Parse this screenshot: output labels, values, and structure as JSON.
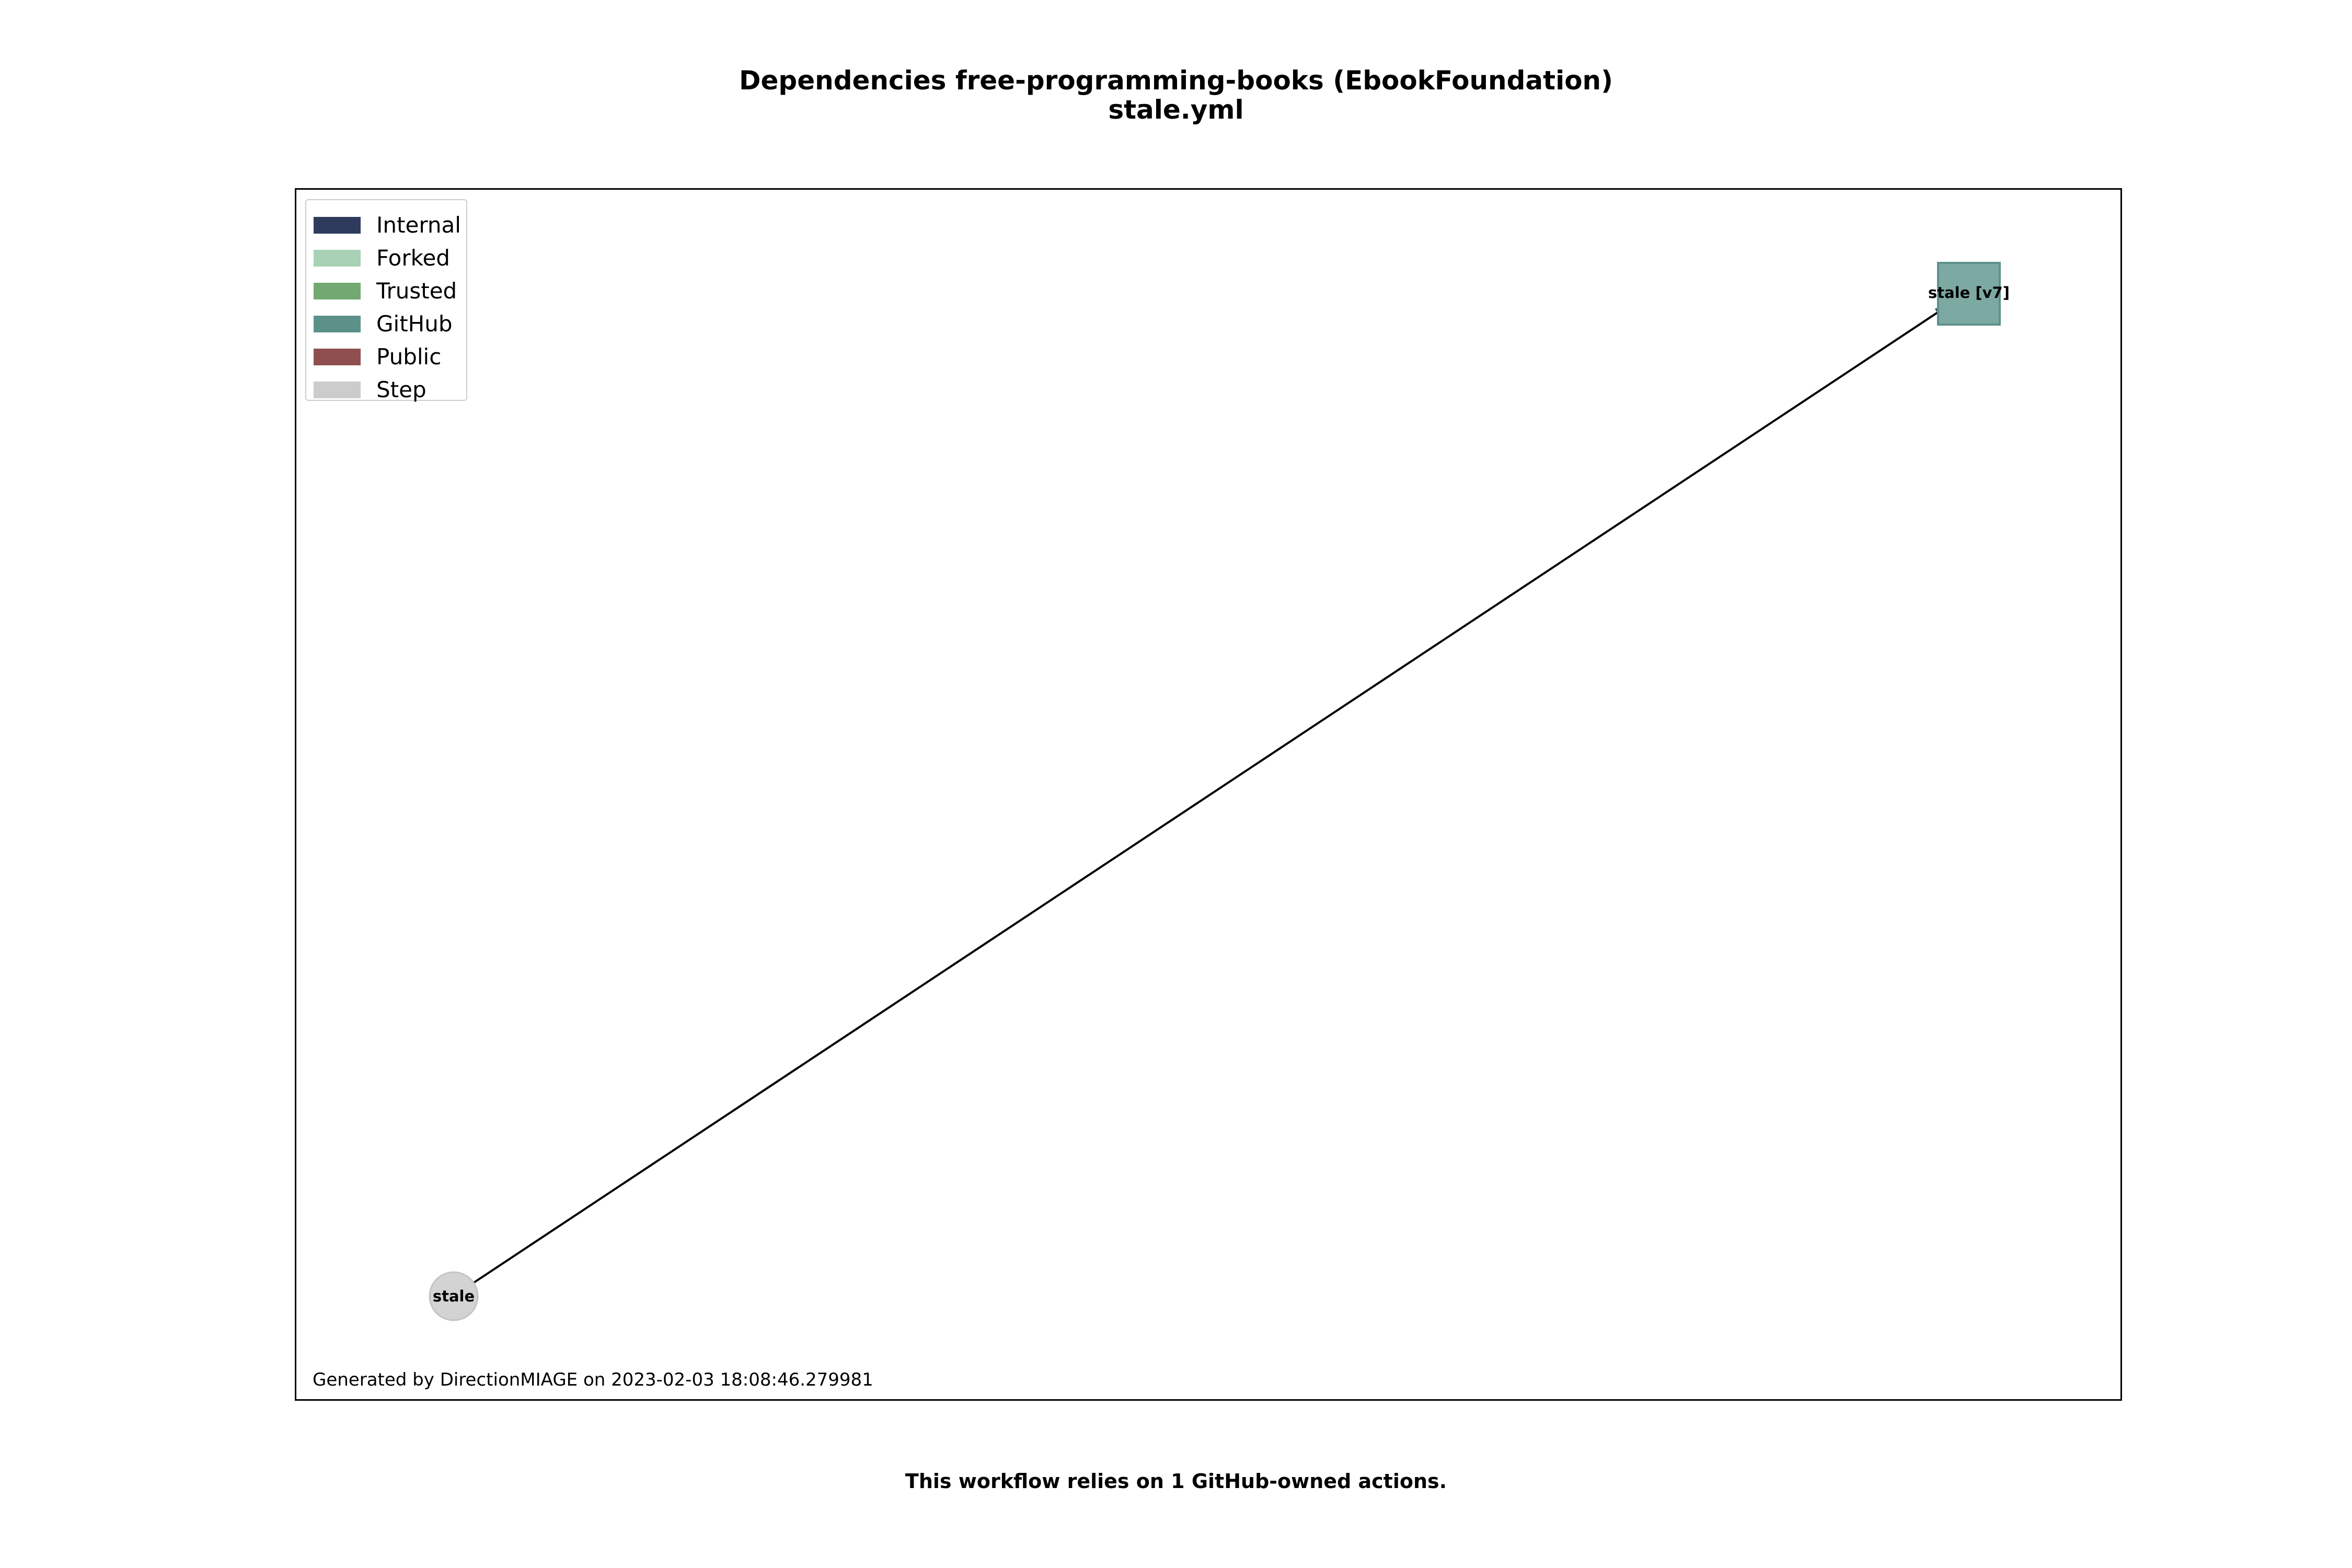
{
  "title": {
    "line1": "Dependencies free-programming-books (EbookFoundation)",
    "line2": "stale.yml"
  },
  "legend": {
    "items": [
      {
        "label": "Internal",
        "color": "#2e3b5c"
      },
      {
        "label": "Forked",
        "color": "#a8d1b5"
      },
      {
        "label": "Trusted",
        "color": "#74a873"
      },
      {
        "label": "GitHub",
        "color": "#5c918a"
      },
      {
        "label": "Public",
        "color": "#8f4f51"
      },
      {
        "label": "Step",
        "color": "#cccccc"
      }
    ]
  },
  "graph": {
    "nodes": [
      {
        "id": "step",
        "label": "stale",
        "kind": "Step",
        "shape": "circle",
        "color": "#d3d3d3"
      },
      {
        "id": "action",
        "label": "stale [v7]",
        "kind": "GitHub",
        "shape": "square",
        "color": "#7da9a3"
      }
    ],
    "edges": [
      {
        "from": "step",
        "to": "action"
      }
    ]
  },
  "footer": {
    "generated": "Generated by DirectionMIAGE on 2023-02-03 18:08:46.279981"
  },
  "caption": "This workflow relies on 1 GitHub-owned actions."
}
